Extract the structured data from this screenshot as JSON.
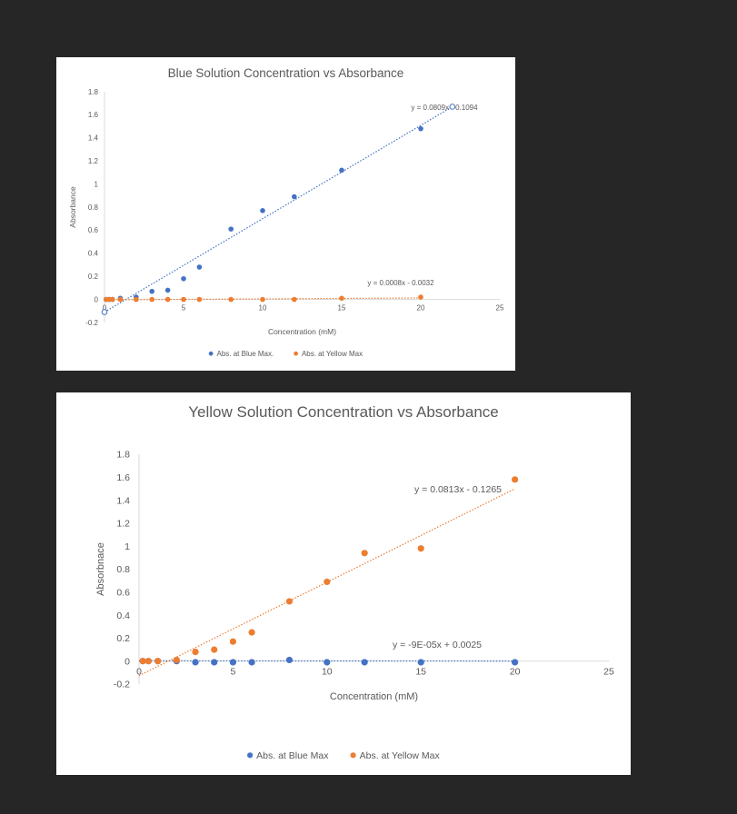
{
  "colors": {
    "background": "#262626",
    "blue": "#4472c4",
    "orange": "#ed7d31",
    "axis": "#d9d9d9",
    "text": "#595959"
  },
  "chart_data": [
    {
      "type": "scatter",
      "title": "Blue Solution Concentration vs Absorbance",
      "xlabel": "Concentration (mM)",
      "ylabel": "Absorbance",
      "xlim": [
        0,
        25
      ],
      "ylim": [
        -0.2,
        1.8
      ],
      "xticks": [
        "0",
        "5",
        "10",
        "15",
        "20",
        "25"
      ],
      "yticks": [
        "-0.2",
        "0",
        "0.2",
        "0.4",
        "0.6",
        "0.8",
        "1",
        "1.2",
        "1.4",
        "1.6",
        "1.8"
      ],
      "grid": false,
      "legend_position": "bottom",
      "series": [
        {
          "name": "Abs. at Blue Max.",
          "color": "#4472c4",
          "x": [
            0.1,
            0.3,
            0.5,
            1,
            2,
            3,
            4,
            5,
            6,
            8,
            10,
            12,
            15,
            20
          ],
          "y": [
            0,
            0,
            0,
            0.01,
            0.02,
            0.07,
            0.08,
            0.18,
            0.28,
            0.61,
            0.77,
            0.89,
            1.12,
            1.48
          ],
          "trendline": {
            "slope": 0.0809,
            "intercept": -0.1094,
            "x_range": [
              0,
              22
            ],
            "label": "y = 0.0809x - 0.1094"
          }
        },
        {
          "name": "Abs. at Yellow Max",
          "color": "#ed7d31",
          "x": [
            0.1,
            0.3,
            0.5,
            1,
            2,
            3,
            4,
            5,
            6,
            8,
            10,
            12,
            15,
            20
          ],
          "y": [
            0,
            0,
            0,
            0,
            0,
            0,
            0,
            0,
            0,
            0,
            0,
            0,
            0.01,
            0.02
          ],
          "trendline": {
            "slope": 0.0008,
            "intercept": -0.0032,
            "x_range": [
              0,
              20
            ],
            "label": "y = 0.0008x - 0.0032"
          }
        }
      ]
    },
    {
      "type": "scatter",
      "title": "Yellow Solution Concentration vs Absorbance",
      "xlabel": "Concentration (mM)",
      "ylabel": "Absorbnace",
      "xlim": [
        0,
        25
      ],
      "ylim": [
        -0.2,
        1.8
      ],
      "xticks": [
        "0",
        "5",
        "10",
        "15",
        "20",
        "25"
      ],
      "yticks": [
        "-0.2",
        "0",
        "0.2",
        "0.4",
        "0.6",
        "0.8",
        "1",
        "1.2",
        "1.4",
        "1.6",
        "1.8"
      ],
      "grid": false,
      "legend_position": "bottom",
      "series": [
        {
          "name": "Abs. at Blue Max",
          "color": "#4472c4",
          "x": [
            0.2,
            0.5,
            1,
            2,
            3,
            4,
            5,
            6,
            8,
            10,
            12,
            15,
            20
          ],
          "y": [
            0,
            0,
            0,
            0,
            -0.01,
            -0.01,
            -0.01,
            -0.01,
            0.01,
            -0.01,
            -0.01,
            -0.01,
            -0.01
          ],
          "trendline": {
            "slope": -9e-05,
            "intercept": 0.0025,
            "x_range": [
              0,
              20
            ],
            "label": "y = -9E-05x + 0.0025"
          }
        },
        {
          "name": "Abs. at Yellow Max",
          "color": "#ed7d31",
          "x": [
            0.2,
            0.5,
            1,
            2,
            3,
            4,
            5,
            6,
            8,
            10,
            12,
            15,
            20
          ],
          "y": [
            0,
            0,
            0,
            0.01,
            0.08,
            0.1,
            0.17,
            0.25,
            0.52,
            0.69,
            0.94,
            0.98,
            1.58
          ],
          "trendline": {
            "slope": 0.0813,
            "intercept": -0.1265,
            "x_range": [
              0,
              20
            ],
            "label": "y = 0.0813x - 0.1265"
          }
        }
      ]
    }
  ]
}
